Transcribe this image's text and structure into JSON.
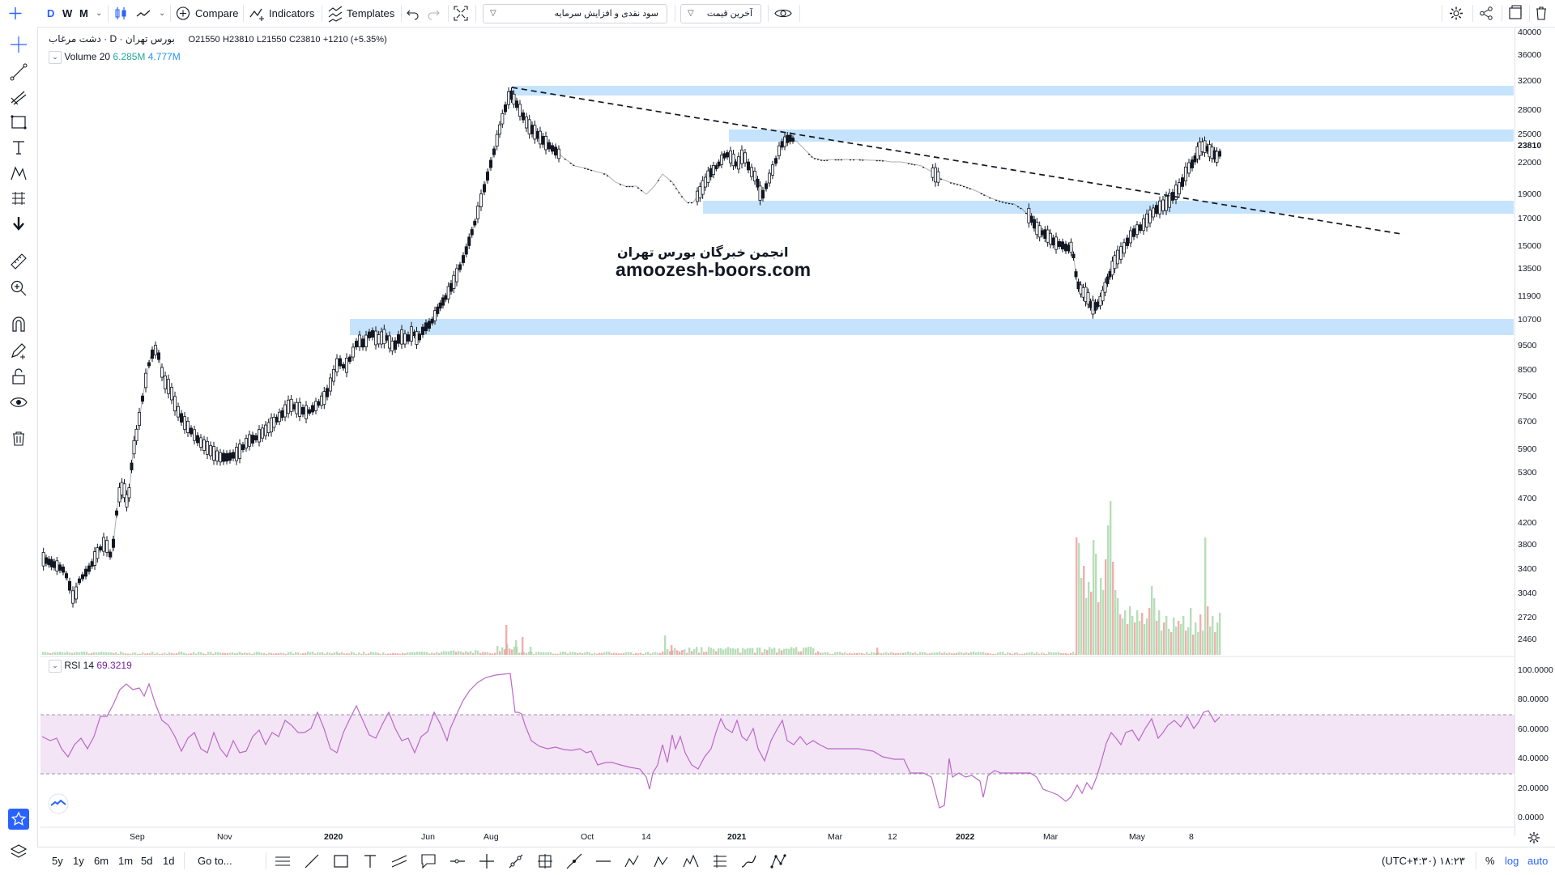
{
  "toolbar": {
    "intervals": [
      "D",
      "W",
      "M"
    ],
    "compare_label": "Compare",
    "indicators_label": "Indicators",
    "templates_label": "Templates",
    "dropdown_strategy": "سود نقدی و افزایش سرمایه",
    "dropdown_price": "آخرین قیمت"
  },
  "legend": {
    "symbol": "دشت مرغاب",
    "interval": "D",
    "exchange": "بورس تهران",
    "open_label": "O",
    "open": "21550",
    "high_label": "H",
    "high": "23810",
    "low_label": "L",
    "low": "21550",
    "close_label": "C",
    "close": "23810",
    "change": "+1210 (+5.35%)",
    "volume_label": "Volume 20",
    "volume_value1": "6.285M",
    "volume_value2": "4.777M",
    "rsi_label": "RSI 14",
    "rsi_value": "69.3219"
  },
  "watermark": {
    "line1": "انجمن خبرگان بورس تهران",
    "line2": "amoozesh-boors.com"
  },
  "price_axis": {
    "labels": [
      "40000",
      "36000",
      "32000",
      "28000",
      "25000",
      "23810",
      "22000",
      "19000",
      "17000",
      "15000",
      "13500",
      "11900",
      "10700",
      "9500",
      "8500",
      "7500",
      "6700",
      "5900",
      "5300",
      "4700",
      "4200",
      "3800",
      "3400",
      "3040",
      "2720",
      "2460"
    ],
    "current_price": "23810"
  },
  "rsi_axis": {
    "labels": [
      "100.0000",
      "80.0000",
      "60.0000",
      "40.0000",
      "20.0000",
      "0.0000"
    ]
  },
  "time_axis": {
    "labels": [
      "Sep",
      "Nov",
      "2020",
      "Jun",
      "Aug",
      "Oct",
      "14",
      "2021",
      "Mar",
      "12",
      "2022",
      "Mar",
      "May",
      "8"
    ]
  },
  "bottom_bar": {
    "ranges": [
      "5y",
      "1y",
      "6m",
      "1m",
      "5d",
      "1d"
    ],
    "goto_label": "Go to...",
    "clock": "۱۸:۲۳ (UTC+۴:۳۰)",
    "percent_label": "%",
    "log_label": "log",
    "auto_label": "auto"
  },
  "colors": {
    "accent": "#2962ff",
    "zone": "#bbdefb",
    "rsi_line": "#ba68c8",
    "rsi_band": "#f3e5f5",
    "up_volume": "#a5d6a7",
    "down_volume": "#ef9a9a",
    "candle": "#131722"
  }
}
